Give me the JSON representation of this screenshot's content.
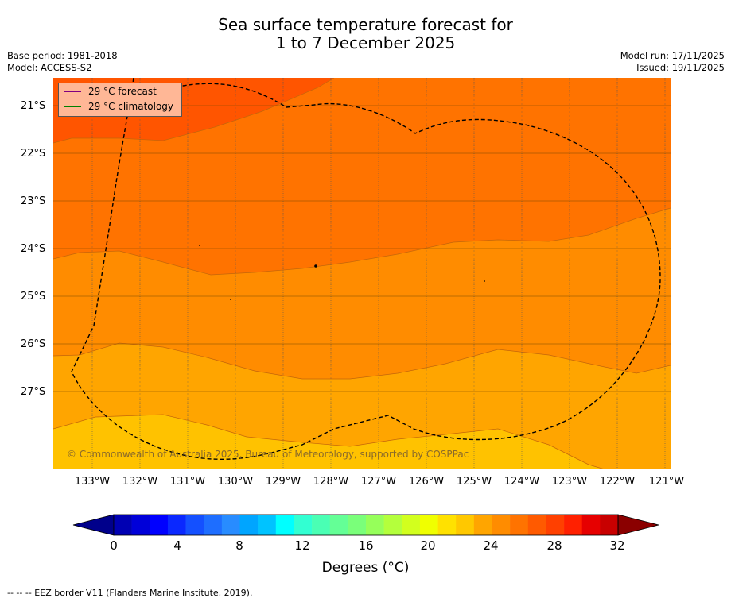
{
  "header": {
    "title_line1": "Sea surface temperature forecast for",
    "title_line2": "1 to 7 December 2025",
    "base_period": "Base period: 1981-2018",
    "model": "Model: ACCESS-S2",
    "model_run": "Model run: 17/11/2025",
    "issued": "Issued: 19/11/2025"
  },
  "map": {
    "lat_labels": [
      "21°S",
      "22°S",
      "23°S",
      "24°S",
      "25°S",
      "26°S",
      "27°S"
    ],
    "lon_labels": [
      "133°W",
      "132°W",
      "131°W",
      "130°W",
      "129°W",
      "128°W",
      "127°W",
      "126°W",
      "125°W",
      "124°W",
      "123°W",
      "122°W",
      "121°W"
    ],
    "legend": {
      "forecast_label": "29 °C  forecast",
      "forecast_color": "#800080",
      "climatology_label": "29 °C  climatology",
      "climatology_color": "#008000"
    },
    "copyright": "© Commonwealth of Australia 2025, Bureau of Meteorology, supported by COSPPac",
    "band_colors": {
      "c28": "#ff5500",
      "c27": "#ff7300",
      "c26": "#ff8c00",
      "c25": "#ffa500",
      "c24": "#ffc200"
    }
  },
  "colorbar": {
    "ticks": [
      "0",
      "4",
      "8",
      "12",
      "16",
      "20",
      "24",
      "28",
      "32"
    ],
    "label": "Degrees (°C)",
    "colors": [
      "#00008b",
      "#0000b3",
      "#0000d9",
      "#0000ff",
      "#0a28ff",
      "#1450ff",
      "#1e6eff",
      "#288cff",
      "#00a5ff",
      "#00c3ff",
      "#00ffff",
      "#32ffd2",
      "#4affb4",
      "#64ff96",
      "#7aff7a",
      "#96ff5a",
      "#b4ff3c",
      "#d2ff1e",
      "#f0ff00",
      "#ffe100",
      "#ffc800",
      "#ffa500",
      "#ff8c00",
      "#ff7300",
      "#ff5a00",
      "#ff4000",
      "#ff2000",
      "#e60000",
      "#c80000",
      "#8b0000"
    ]
  },
  "footnote": "--  --  -- EEZ border V11 (Flanders Marine Institute, 2019)."
}
